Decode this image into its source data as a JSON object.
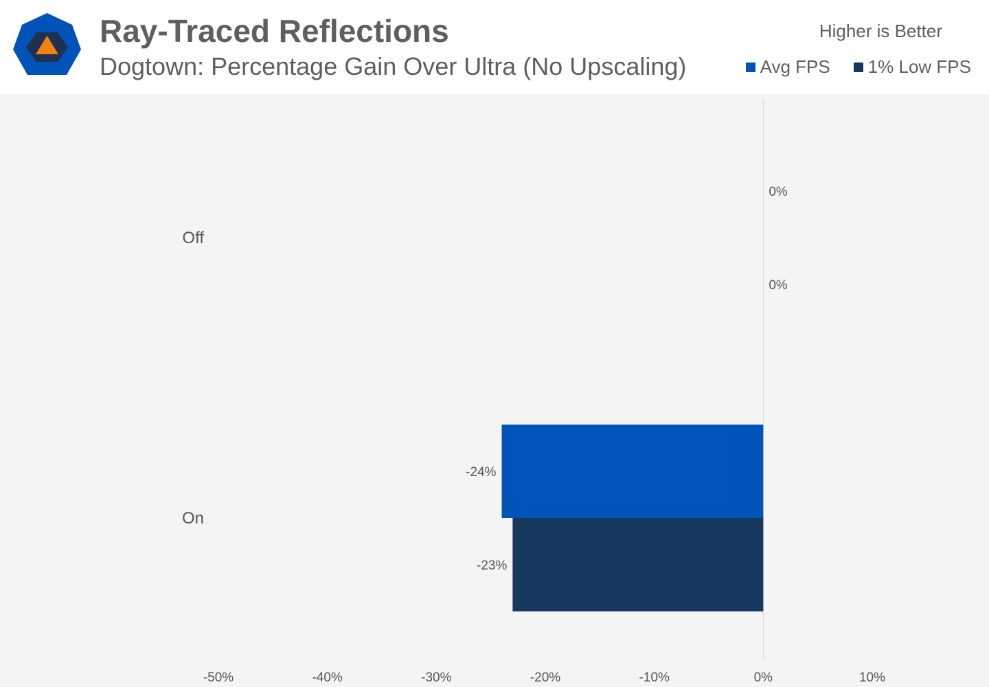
{
  "header": {
    "title": "Ray-Traced Reflections",
    "subtitle": "Dogtown: Percentage Gain Over Ultra (No Upscaling)",
    "note": "Higher is Better",
    "logo_icon": "hexagon-triangle-logo-icon"
  },
  "colors": {
    "avg_fps": "#0053b8",
    "low_fps": "#16375e",
    "logo_outer": "#0053b8",
    "logo_inner": "#1f3150",
    "logo_triangle": "#f47f12",
    "plot_bg": "#f4f4f4",
    "text": "#5f5f5f"
  },
  "chart_data": {
    "type": "bar",
    "orientation": "horizontal",
    "title": "Ray-Traced Reflections",
    "subtitle": "Dogtown: Percentage Gain Over Ultra (No Upscaling)",
    "categories": [
      "Off",
      "On"
    ],
    "series": [
      {
        "name": "Avg FPS",
        "values": [
          0,
          -24
        ]
      },
      {
        "name": "1% Low FPS",
        "values": [
          0,
          -23
        ]
      }
    ],
    "value_labels": [
      [
        "0%",
        "-24%"
      ],
      [
        "0%",
        "-23%"
      ]
    ],
    "xlim": [
      -50,
      10
    ],
    "x_ticks": [
      -50,
      -40,
      -30,
      -20,
      -10,
      0,
      10
    ],
    "x_tick_labels": [
      "-50%",
      "-40%",
      "-30%",
      "-20%",
      "-10%",
      "0%",
      "10%"
    ],
    "xlabel": "",
    "ylabel": "",
    "grid": false,
    "legend_position": "top-right"
  }
}
